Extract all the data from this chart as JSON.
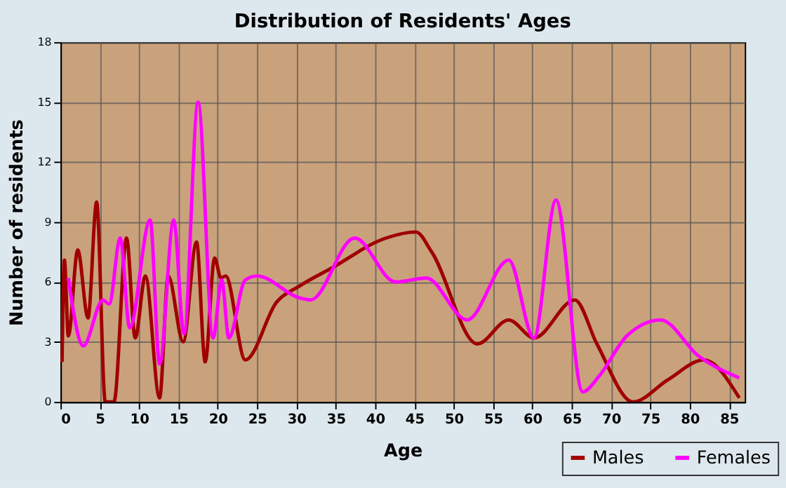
{
  "chart_data": {
    "type": "line",
    "title": "Distribution of Residents' Ages",
    "xlabel": "Age",
    "ylabel": "Number of residents",
    "xlim": [
      0,
      87
    ],
    "xticks": [
      0,
      5,
      10,
      15,
      20,
      25,
      30,
      35,
      40,
      45,
      50,
      55,
      60,
      65,
      70,
      75,
      80,
      85
    ],
    "ylim": [
      0,
      18
    ],
    "yticks": [
      0,
      3,
      6,
      9,
      12,
      15,
      18
    ],
    "grid": true,
    "legend": "bottom right",
    "marker": "none",
    "line_style": "solid",
    "series": [
      {
        "name": "Males",
        "color": "#a00000",
        "x": [
          0.2,
          0.5,
          1,
          2.2,
          3.5,
          4.6,
          5.7,
          6.8,
          8.4,
          9.5,
          10.8,
          12.6,
          13.7,
          15.6,
          17.3,
          18.4,
          19.6,
          20.4,
          21,
          23.5,
          27.5,
          30.4,
          34.5,
          41.4,
          45.2,
          47.2,
          53,
          57,
          60.2,
          65.4,
          68.2,
          72.8,
          77.2,
          81.8,
          86.3
        ],
        "values": [
          2,
          7.1,
          3.3,
          7.6,
          4.2,
          10,
          0,
          0,
          8.2,
          3.2,
          6.3,
          0.2,
          6.3,
          3,
          8,
          2,
          7.2,
          6.2,
          6.3,
          2.1,
          5,
          5.8,
          6.7,
          8.2,
          8.5,
          7.5,
          2.9,
          4.1,
          3.2,
          5.1,
          2.9,
          0,
          1.1,
          2.1,
          0.2
        ]
      },
      {
        "name": "Females",
        "color": "#ff00ff",
        "x": [
          1,
          2.9,
          5.4,
          6.2,
          7.6,
          8.8,
          11.4,
          12.6,
          14.4,
          15.7,
          17.5,
          19.4,
          20.5,
          21.4,
          23.5,
          25,
          30.4,
          31.8,
          37.4,
          42.6,
          46.5,
          51.7,
          57,
          60.2,
          63,
          66.4,
          68.5,
          72,
          76.3,
          81.1,
          86.3
        ],
        "values": [
          6.2,
          2.8,
          5.1,
          4.9,
          8.2,
          3.7,
          9.1,
          1.9,
          9.1,
          3.4,
          15,
          3.2,
          6.1,
          3.2,
          6.1,
          6.3,
          5.2,
          5.1,
          8.2,
          6,
          6.2,
          4.1,
          7.1,
          3.2,
          10.1,
          0.5,
          1.3,
          3.3,
          4.1,
          2.3,
          1.2
        ]
      }
    ]
  }
}
